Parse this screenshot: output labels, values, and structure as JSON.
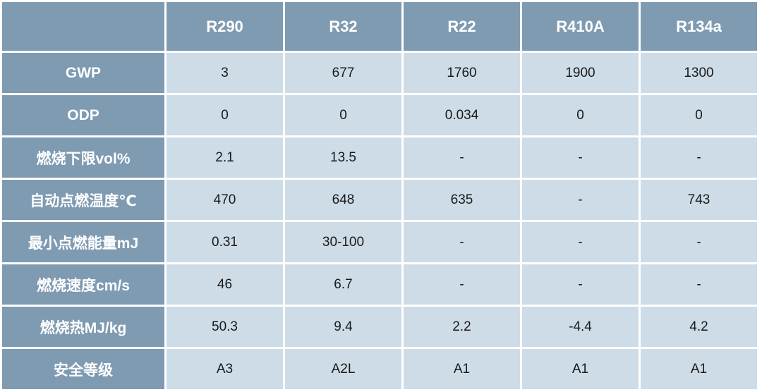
{
  "table": {
    "columns": [
      "R290",
      "R32",
      "R22",
      "R410A",
      "R134a"
    ],
    "rows": [
      {
        "label": "GWP",
        "cells": [
          "3",
          "677",
          "1760",
          "1900",
          "1300"
        ]
      },
      {
        "label": "ODP",
        "cells": [
          "0",
          "0",
          "0.034",
          "0",
          "0"
        ]
      },
      {
        "label": "燃烧下限vol%",
        "cells": [
          "2.1",
          "13.5",
          "-",
          "-",
          "-"
        ]
      },
      {
        "label": "自动点燃温度℃",
        "cells": [
          "470",
          "648",
          "635",
          "-",
          "743"
        ]
      },
      {
        "label": "最小点燃能量mJ",
        "cells": [
          "0.31",
          "30-100",
          "-",
          "-",
          "-"
        ]
      },
      {
        "label": "燃烧速度cm/s",
        "cells": [
          "46",
          "6.7",
          "-",
          "-",
          "-"
        ]
      },
      {
        "label": "燃烧热MJ/kg",
        "cells": [
          "50.3",
          "9.4",
          "2.2",
          "-4.4",
          "4.2"
        ]
      },
      {
        "label": "安全等级",
        "cells": [
          "A3",
          "A2L",
          "A1",
          "A1",
          "A1"
        ]
      }
    ]
  }
}
